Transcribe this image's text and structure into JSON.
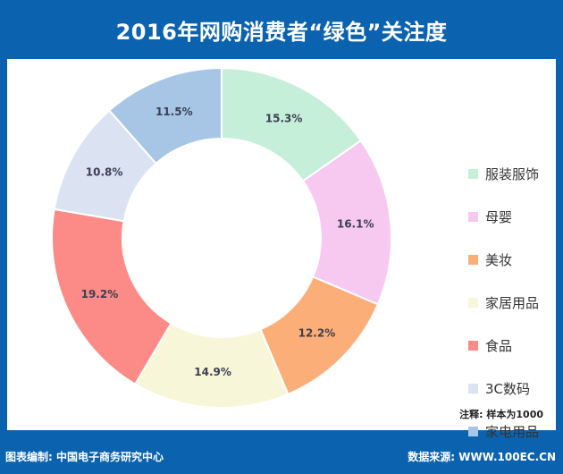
{
  "header": {
    "title": "2016年网购消费者“绿色”关注度"
  },
  "chart_data": {
    "type": "pie",
    "title": "2016年网购消费者“绿色”关注度",
    "categories": [
      "服装服饰",
      "母婴",
      "美妆",
      "家居用品",
      "食品",
      "3C数码",
      "家电用品"
    ],
    "values": [
      15.3,
      16.1,
      12.2,
      14.9,
      19.2,
      10.8,
      11.5
    ],
    "value_labels": [
      "15.3%",
      "16.1%",
      "12.2%",
      "14.9%",
      "19.2%",
      "10.8%",
      "11.5%"
    ],
    "colors": [
      "#c6efd9",
      "#f7c8f0",
      "#fcae78",
      "#f8f6d8",
      "#fc8a86",
      "#dbe2f2",
      "#a7c6e6"
    ],
    "donut": true,
    "legend_position": "right"
  },
  "legend": {
    "items": [
      "服装服饰",
      "母婴",
      "美妆",
      "家居用品",
      "食品",
      "3C数码",
      "家电用品"
    ]
  },
  "note": "注释: 样本为1000",
  "footer": {
    "left": "图表编制: 中国电子商务研究中心",
    "right": "数据来源: WWW.100EC.CN"
  }
}
